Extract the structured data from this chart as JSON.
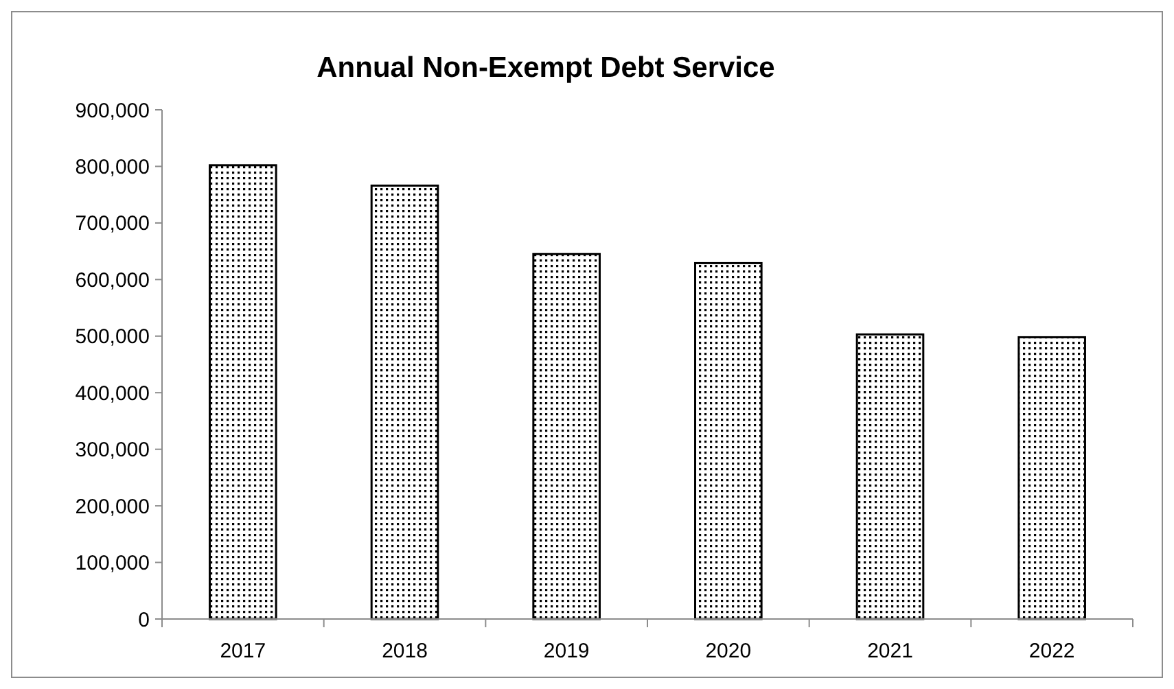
{
  "chart_data": {
    "type": "bar",
    "title": "Annual Non-Exempt Debt Service",
    "categories": [
      "2017",
      "2018",
      "2019",
      "2020",
      "2021",
      "2022"
    ],
    "values": [
      802000,
      766000,
      645000,
      629000,
      503000,
      498000
    ],
    "color": "#000000",
    "ylim": [
      0,
      900000
    ],
    "yticks": [
      {
        "value": 0,
        "label": "0"
      },
      {
        "value": 100000,
        "label": "100,000"
      },
      {
        "value": 200000,
        "label": "200,000"
      },
      {
        "value": 300000,
        "label": "300,000"
      },
      {
        "value": 400000,
        "label": "400,000"
      },
      {
        "value": 500000,
        "label": "500,000"
      },
      {
        "value": 600000,
        "label": "600,000"
      },
      {
        "value": 700000,
        "label": "700,000"
      },
      {
        "value": 800000,
        "label": "800,000"
      },
      {
        "value": 900000,
        "label": "900,000"
      }
    ],
    "grid": false
  }
}
